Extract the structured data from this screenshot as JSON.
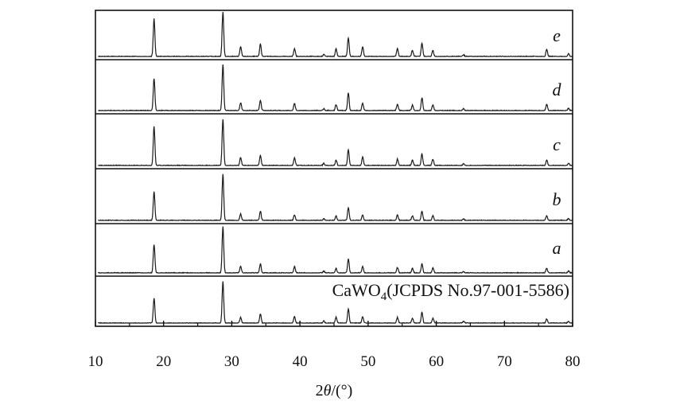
{
  "chart_data": {
    "type": "line",
    "xlabel": "2θ/(°)",
    "xlim": [
      10,
      80
    ],
    "x_ticks": [
      10,
      20,
      30,
      40,
      50,
      60,
      70,
      80
    ],
    "y_ticks": [],
    "grid": false,
    "legend": "none",
    "line_color": "#1a1a1a",
    "series": [
      {
        "name": "e",
        "peaks": [
          [
            18.6,
            0.85
          ],
          [
            28.7,
            1.0
          ],
          [
            31.3,
            0.22
          ],
          [
            34.2,
            0.28
          ],
          [
            39.2,
            0.18
          ],
          [
            43.5,
            0.05
          ],
          [
            45.3,
            0.17
          ],
          [
            47.1,
            0.42
          ],
          [
            49.2,
            0.22
          ],
          [
            54.3,
            0.18
          ],
          [
            56.5,
            0.14
          ],
          [
            57.9,
            0.3
          ],
          [
            59.5,
            0.14
          ],
          [
            64.0,
            0.04
          ],
          [
            76.2,
            0.16
          ],
          [
            79.4,
            0.06
          ]
        ]
      },
      {
        "name": "d",
        "peaks": [
          [
            18.6,
            0.7
          ],
          [
            28.7,
            1.0
          ],
          [
            31.3,
            0.17
          ],
          [
            34.2,
            0.22
          ],
          [
            39.2,
            0.16
          ],
          [
            43.5,
            0.04
          ],
          [
            45.3,
            0.13
          ],
          [
            47.1,
            0.38
          ],
          [
            49.2,
            0.16
          ],
          [
            54.3,
            0.14
          ],
          [
            56.5,
            0.12
          ],
          [
            57.9,
            0.28
          ],
          [
            59.5,
            0.13
          ],
          [
            64.0,
            0.04
          ],
          [
            76.2,
            0.14
          ],
          [
            79.4,
            0.05
          ]
        ]
      },
      {
        "name": "c",
        "peaks": [
          [
            18.6,
            0.85
          ],
          [
            28.7,
            1.0
          ],
          [
            31.3,
            0.18
          ],
          [
            34.2,
            0.22
          ],
          [
            39.2,
            0.17
          ],
          [
            43.5,
            0.05
          ],
          [
            45.3,
            0.12
          ],
          [
            47.1,
            0.34
          ],
          [
            49.2,
            0.18
          ],
          [
            54.3,
            0.14
          ],
          [
            56.5,
            0.12
          ],
          [
            57.9,
            0.25
          ],
          [
            59.5,
            0.14
          ],
          [
            64.0,
            0.04
          ],
          [
            76.2,
            0.11
          ],
          [
            79.4,
            0.05
          ]
        ]
      },
      {
        "name": "b",
        "peaks": [
          [
            18.6,
            0.62
          ],
          [
            28.7,
            1.0
          ],
          [
            31.3,
            0.14
          ],
          [
            34.2,
            0.2
          ],
          [
            39.2,
            0.12
          ],
          [
            43.5,
            0.04
          ],
          [
            45.3,
            0.1
          ],
          [
            47.1,
            0.28
          ],
          [
            49.2,
            0.12
          ],
          [
            54.3,
            0.12
          ],
          [
            56.5,
            0.1
          ],
          [
            57.9,
            0.2
          ],
          [
            59.5,
            0.1
          ],
          [
            64.0,
            0.03
          ],
          [
            76.2,
            0.1
          ],
          [
            79.4,
            0.04
          ]
        ]
      },
      {
        "name": "a",
        "peaks": [
          [
            18.6,
            0.62
          ],
          [
            28.7,
            1.0
          ],
          [
            31.3,
            0.14
          ],
          [
            34.2,
            0.2
          ],
          [
            39.2,
            0.14
          ],
          [
            43.5,
            0.04
          ],
          [
            45.3,
            0.1
          ],
          [
            47.1,
            0.3
          ],
          [
            49.2,
            0.14
          ],
          [
            54.3,
            0.12
          ],
          [
            56.5,
            0.1
          ],
          [
            57.9,
            0.2
          ],
          [
            59.5,
            0.11
          ],
          [
            64.0,
            0.03
          ],
          [
            76.2,
            0.1
          ],
          [
            79.4,
            0.04
          ]
        ]
      },
      {
        "name": "CaWO4(JCPDS No.97-001-5586)",
        "peaks": [
          [
            18.6,
            0.6
          ],
          [
            28.7,
            1.0
          ],
          [
            31.3,
            0.14
          ],
          [
            34.2,
            0.22
          ],
          [
            39.2,
            0.16
          ],
          [
            43.5,
            0.05
          ],
          [
            45.3,
            0.14
          ],
          [
            47.1,
            0.34
          ],
          [
            49.2,
            0.16
          ],
          [
            54.3,
            0.14
          ],
          [
            56.5,
            0.12
          ],
          [
            57.9,
            0.26
          ],
          [
            59.5,
            0.12
          ],
          [
            64.0,
            0.04
          ],
          [
            76.2,
            0.1
          ],
          [
            79.4,
            0.04
          ]
        ]
      }
    ]
  },
  "labels": {
    "e": "e",
    "d": "d",
    "c": "c",
    "b": "b",
    "a": "a",
    "ref_main": "CaWO",
    "ref_sub": "4",
    "ref_rest": "(JCPDS No.97-001-5586)",
    "xlabel_pre": "2",
    "xlabel_theta": "θ",
    "xlabel_post": "/(°)"
  }
}
